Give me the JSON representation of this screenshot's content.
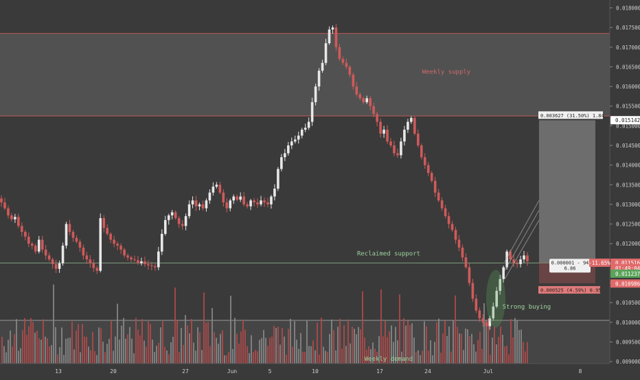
{
  "chart_data": {
    "type": "candlestick",
    "symbol_note": "",
    "y_axis": {
      "range": [
        0.00895,
        0.0182
      ],
      "ticks": [
        "0.018000",
        "0.017500",
        "0.017000",
        "0.016500",
        "0.016000",
        "0.015500",
        "0.015000",
        "0.014500",
        "0.014000",
        "0.013500",
        "0.013000",
        "0.012500",
        "0.012000",
        "0.011500",
        "0.011000",
        "0.010500",
        "0.010000",
        "0.009500",
        "0.009000"
      ]
    },
    "x_axis": {
      "ticks": [
        "13",
        "20",
        "27",
        "Jun",
        "5",
        "10",
        "17",
        "24",
        "Jul",
        "8"
      ]
    },
    "zones": [
      {
        "name": "Weekly supply",
        "low": 0.01525,
        "high": 0.01735,
        "color": "#5a5a5a",
        "line_color": "#c05a5a"
      },
      {
        "name": "Weekly demand",
        "low": 0.00895,
        "high": 0.01005,
        "color": "#4a4a4a",
        "line_color": "#9a9a9a"
      }
    ],
    "levels": [
      {
        "name": "Reclaimed support",
        "price": 0.01151,
        "color": "#8fb98f"
      }
    ],
    "annotations": {
      "supply_label": "Weekly supply",
      "demand_label": "Weekly demand",
      "support_label": "Reclaimed support",
      "buying_label": "Strong buying"
    },
    "position_tool": {
      "entry": 0.01151,
      "target": 0.01514,
      "stop": 0.01099,
      "profit_label": "0.003627 (31.50%) 1.84",
      "risk_label": "0.000525 (4.59%) 0.95",
      "mid_label_1": "0.000001 - 94",
      "mid_label_2": "6.86"
    },
    "price_labels": [
      {
        "text": "0.015142",
        "price": 0.015142,
        "bg": "#ffffff",
        "fg": "#222222"
      },
      {
        "text": "0.011515",
        "price": 0.011515,
        "bg": "#3a3a3a",
        "fg": "#dddddd"
      },
      {
        "text": "0.011516",
        "price": 0.011516,
        "bg": "#e06a6a",
        "fg": "#ffffff"
      },
      {
        "text": "01:49:04",
        "price": 0.011375,
        "bg": "#e06a6a",
        "fg": "#ffffff"
      },
      {
        "text": "0.011237",
        "price": 0.011237,
        "bg": "#5aa35a",
        "fg": "#ffffff"
      },
      {
        "text": "0.010986",
        "price": 0.010986,
        "bg": "#e06a6a",
        "fg": "#ffffff"
      }
    ],
    "pct_label": "-11.65%",
    "close_series": [
      0.01305,
      0.0129,
      0.01272,
      0.01262,
      0.01268,
      0.01245,
      0.0123,
      0.01218,
      0.012,
      0.01195,
      0.0118,
      0.0121,
      0.01185,
      0.0117,
      0.0116,
      0.01148,
      0.01136,
      0.0115,
      0.01195,
      0.0125,
      0.0123,
      0.01215,
      0.01205,
      0.0119,
      0.0117,
      0.0116,
      0.0115,
      0.01138,
      0.01131,
      0.01265,
      0.0124,
      0.01225,
      0.0121,
      0.012,
      0.01195,
      0.01185,
      0.0117,
      0.01165,
      0.0116,
      0.01158,
      0.0115,
      0.01155,
      0.01148,
      0.01145,
      0.01143,
      0.0114,
      0.0118,
      0.01225,
      0.0126,
      0.01272,
      0.0128,
      0.01265,
      0.0125,
      0.01245,
      0.0127,
      0.013,
      0.0131,
      0.01295,
      0.013,
      0.0129,
      0.0131,
      0.0133,
      0.01345,
      0.0135,
      0.0133,
      0.01305,
      0.0129,
      0.0131,
      0.0132,
      0.01312,
      0.0132,
      0.013,
      0.01295,
      0.0131,
      0.01305,
      0.013,
      0.0131,
      0.01305,
      0.013,
      0.0132,
      0.0134,
      0.0139,
      0.0142,
      0.0143,
      0.0145,
      0.0146,
      0.01465,
      0.01475,
      0.0149,
      0.01495,
      0.0151,
      0.0156,
      0.016,
      0.0164,
      0.0166,
      0.0171,
      0.01745,
      0.0175,
      0.017,
      0.0167,
      0.0166,
      0.0165,
      0.0163,
      0.016,
      0.0158,
      0.0157,
      0.0156,
      0.0157,
      0.0155,
      0.0153,
      0.0151,
      0.0148,
      0.0149,
      0.0146,
      0.0145,
      0.0143,
      0.01425,
      0.0146,
      0.0149,
      0.0151,
      0.0152,
      0.0148,
      0.0145,
      0.0142,
      0.014,
      0.0138,
      0.0136,
      0.0133,
      0.0131,
      0.0129,
      0.0127,
      0.0125,
      0.01235,
      0.0121,
      0.0119,
      0.01165,
      0.0114,
      0.011,
      0.0106,
      0.0103,
      0.0101,
      0.01,
      0.0099,
      0.0101,
      0.0104,
      0.0108,
      0.0111,
      0.0114,
      0.0118,
      0.0116,
      0.0115,
      0.01148,
      0.0116,
      0.0117,
      0.01155
    ]
  },
  "watermark": ""
}
